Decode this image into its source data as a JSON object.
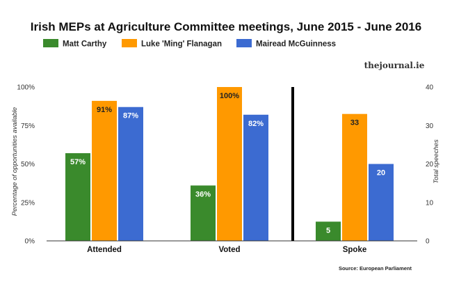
{
  "chart_data": {
    "type": "bar",
    "title": "Irish MEPs at Agriculture Committee meetings, June 2015 - June 2016",
    "source": "Source: European Parliament",
    "brand": "thejournal.ie",
    "series": [
      {
        "name": "Matt Carthy",
        "color": "#3a8a2c"
      },
      {
        "name": "Luke 'Ming' Flanagan",
        "color": "#ff9900"
      },
      {
        "name": "Mairead McGuinness",
        "color": "#3c6bd1"
      }
    ],
    "groups": [
      {
        "category": "Attended",
        "axis": "left",
        "values": [
          57,
          91,
          87
        ],
        "labels": [
          "57%",
          "91%",
          "87%"
        ]
      },
      {
        "category": "Voted",
        "axis": "left",
        "values": [
          36,
          100,
          82
        ],
        "labels": [
          "36%",
          "100%",
          "82%"
        ]
      },
      {
        "category": "Spoke",
        "axis": "right",
        "values": [
          5,
          33,
          20
        ],
        "labels": [
          "5",
          "33",
          "20"
        ]
      }
    ],
    "left_axis": {
      "label": "Percentage of opportunities available",
      "range": [
        0,
        100
      ],
      "ticks": [
        0,
        25,
        50,
        75,
        100
      ],
      "tick_labels": [
        "0%",
        "25%",
        "50%",
        "75%",
        "100%"
      ]
    },
    "right_axis": {
      "label": "Total speeches",
      "range": [
        0,
        40
      ],
      "ticks": [
        0,
        10,
        20,
        30,
        40
      ],
      "tick_labels": [
        "0",
        "10",
        "20",
        "30",
        "40"
      ]
    },
    "grid": false,
    "legend_position": "top-left"
  }
}
